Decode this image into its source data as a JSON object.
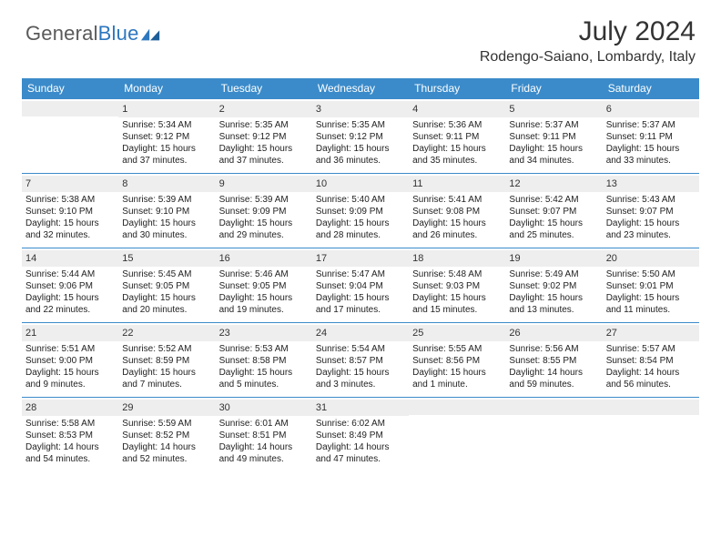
{
  "logo": {
    "word1": "General",
    "word2": "Blue",
    "mark_color": "#2d77bf"
  },
  "title": "July 2024",
  "location": "Rodengo-Saiano, Lombardy, Italy",
  "header_bg": "#3b8bca",
  "daynum_bg": "#eeeeee",
  "days": [
    "Sunday",
    "Monday",
    "Tuesday",
    "Wednesday",
    "Thursday",
    "Friday",
    "Saturday"
  ],
  "weeks": [
    [
      {
        "num": "",
        "sunrise": "",
        "sunset": "",
        "daylight": ""
      },
      {
        "num": "1",
        "sunrise": "Sunrise: 5:34 AM",
        "sunset": "Sunset: 9:12 PM",
        "daylight": "Daylight: 15 hours and 37 minutes."
      },
      {
        "num": "2",
        "sunrise": "Sunrise: 5:35 AM",
        "sunset": "Sunset: 9:12 PM",
        "daylight": "Daylight: 15 hours and 37 minutes."
      },
      {
        "num": "3",
        "sunrise": "Sunrise: 5:35 AM",
        "sunset": "Sunset: 9:12 PM",
        "daylight": "Daylight: 15 hours and 36 minutes."
      },
      {
        "num": "4",
        "sunrise": "Sunrise: 5:36 AM",
        "sunset": "Sunset: 9:11 PM",
        "daylight": "Daylight: 15 hours and 35 minutes."
      },
      {
        "num": "5",
        "sunrise": "Sunrise: 5:37 AM",
        "sunset": "Sunset: 9:11 PM",
        "daylight": "Daylight: 15 hours and 34 minutes."
      },
      {
        "num": "6",
        "sunrise": "Sunrise: 5:37 AM",
        "sunset": "Sunset: 9:11 PM",
        "daylight": "Daylight: 15 hours and 33 minutes."
      }
    ],
    [
      {
        "num": "7",
        "sunrise": "Sunrise: 5:38 AM",
        "sunset": "Sunset: 9:10 PM",
        "daylight": "Daylight: 15 hours and 32 minutes."
      },
      {
        "num": "8",
        "sunrise": "Sunrise: 5:39 AM",
        "sunset": "Sunset: 9:10 PM",
        "daylight": "Daylight: 15 hours and 30 minutes."
      },
      {
        "num": "9",
        "sunrise": "Sunrise: 5:39 AM",
        "sunset": "Sunset: 9:09 PM",
        "daylight": "Daylight: 15 hours and 29 minutes."
      },
      {
        "num": "10",
        "sunrise": "Sunrise: 5:40 AM",
        "sunset": "Sunset: 9:09 PM",
        "daylight": "Daylight: 15 hours and 28 minutes."
      },
      {
        "num": "11",
        "sunrise": "Sunrise: 5:41 AM",
        "sunset": "Sunset: 9:08 PM",
        "daylight": "Daylight: 15 hours and 26 minutes."
      },
      {
        "num": "12",
        "sunrise": "Sunrise: 5:42 AM",
        "sunset": "Sunset: 9:07 PM",
        "daylight": "Daylight: 15 hours and 25 minutes."
      },
      {
        "num": "13",
        "sunrise": "Sunrise: 5:43 AM",
        "sunset": "Sunset: 9:07 PM",
        "daylight": "Daylight: 15 hours and 23 minutes."
      }
    ],
    [
      {
        "num": "14",
        "sunrise": "Sunrise: 5:44 AM",
        "sunset": "Sunset: 9:06 PM",
        "daylight": "Daylight: 15 hours and 22 minutes."
      },
      {
        "num": "15",
        "sunrise": "Sunrise: 5:45 AM",
        "sunset": "Sunset: 9:05 PM",
        "daylight": "Daylight: 15 hours and 20 minutes."
      },
      {
        "num": "16",
        "sunrise": "Sunrise: 5:46 AM",
        "sunset": "Sunset: 9:05 PM",
        "daylight": "Daylight: 15 hours and 19 minutes."
      },
      {
        "num": "17",
        "sunrise": "Sunrise: 5:47 AM",
        "sunset": "Sunset: 9:04 PM",
        "daylight": "Daylight: 15 hours and 17 minutes."
      },
      {
        "num": "18",
        "sunrise": "Sunrise: 5:48 AM",
        "sunset": "Sunset: 9:03 PM",
        "daylight": "Daylight: 15 hours and 15 minutes."
      },
      {
        "num": "19",
        "sunrise": "Sunrise: 5:49 AM",
        "sunset": "Sunset: 9:02 PM",
        "daylight": "Daylight: 15 hours and 13 minutes."
      },
      {
        "num": "20",
        "sunrise": "Sunrise: 5:50 AM",
        "sunset": "Sunset: 9:01 PM",
        "daylight": "Daylight: 15 hours and 11 minutes."
      }
    ],
    [
      {
        "num": "21",
        "sunrise": "Sunrise: 5:51 AM",
        "sunset": "Sunset: 9:00 PM",
        "daylight": "Daylight: 15 hours and 9 minutes."
      },
      {
        "num": "22",
        "sunrise": "Sunrise: 5:52 AM",
        "sunset": "Sunset: 8:59 PM",
        "daylight": "Daylight: 15 hours and 7 minutes."
      },
      {
        "num": "23",
        "sunrise": "Sunrise: 5:53 AM",
        "sunset": "Sunset: 8:58 PM",
        "daylight": "Daylight: 15 hours and 5 minutes."
      },
      {
        "num": "24",
        "sunrise": "Sunrise: 5:54 AM",
        "sunset": "Sunset: 8:57 PM",
        "daylight": "Daylight: 15 hours and 3 minutes."
      },
      {
        "num": "25",
        "sunrise": "Sunrise: 5:55 AM",
        "sunset": "Sunset: 8:56 PM",
        "daylight": "Daylight: 15 hours and 1 minute."
      },
      {
        "num": "26",
        "sunrise": "Sunrise: 5:56 AM",
        "sunset": "Sunset: 8:55 PM",
        "daylight": "Daylight: 14 hours and 59 minutes."
      },
      {
        "num": "27",
        "sunrise": "Sunrise: 5:57 AM",
        "sunset": "Sunset: 8:54 PM",
        "daylight": "Daylight: 14 hours and 56 minutes."
      }
    ],
    [
      {
        "num": "28",
        "sunrise": "Sunrise: 5:58 AM",
        "sunset": "Sunset: 8:53 PM",
        "daylight": "Daylight: 14 hours and 54 minutes."
      },
      {
        "num": "29",
        "sunrise": "Sunrise: 5:59 AM",
        "sunset": "Sunset: 8:52 PM",
        "daylight": "Daylight: 14 hours and 52 minutes."
      },
      {
        "num": "30",
        "sunrise": "Sunrise: 6:01 AM",
        "sunset": "Sunset: 8:51 PM",
        "daylight": "Daylight: 14 hours and 49 minutes."
      },
      {
        "num": "31",
        "sunrise": "Sunrise: 6:02 AM",
        "sunset": "Sunset: 8:49 PM",
        "daylight": "Daylight: 14 hours and 47 minutes."
      },
      {
        "num": "",
        "sunrise": "",
        "sunset": "",
        "daylight": ""
      },
      {
        "num": "",
        "sunrise": "",
        "sunset": "",
        "daylight": ""
      },
      {
        "num": "",
        "sunrise": "",
        "sunset": "",
        "daylight": ""
      }
    ]
  ]
}
